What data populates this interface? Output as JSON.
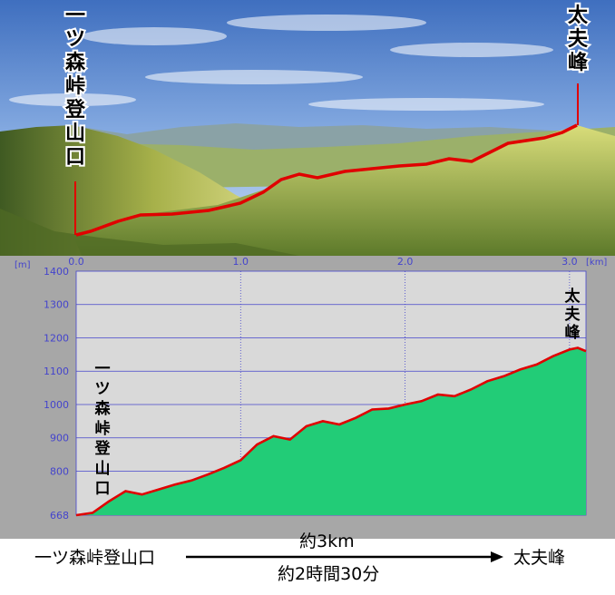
{
  "scene": {
    "start_label": "一ツ森峠登山口",
    "end_label": "太夫峰"
  },
  "chart_data": {
    "type": "area",
    "x_unit": "[km]",
    "y_unit": "[m]",
    "xlim": [
      0,
      3.1
    ],
    "ylim": [
      668,
      1400
    ],
    "x_ticks": [
      "0.0",
      "1.0",
      "2.0",
      "3.0"
    ],
    "y_ticks": [
      "668",
      "800",
      "900",
      "1000",
      "1100",
      "1200",
      "1300",
      "1400"
    ],
    "start_label": "一ツ森峠登山口",
    "end_label": "太夫峰",
    "grid": true,
    "series": [
      {
        "x": [
          0.0,
          0.1,
          0.2,
          0.3,
          0.4,
          0.5,
          0.6,
          0.7,
          0.8,
          0.9,
          1.0,
          1.1,
          1.2,
          1.3,
          1.4,
          1.5,
          1.6,
          1.7,
          1.8,
          1.9,
          2.0,
          2.1,
          2.2,
          2.3,
          2.4,
          2.5,
          2.6,
          2.7,
          2.8,
          2.9,
          3.0,
          3.05,
          3.1
        ],
        "y": [
          668,
          675,
          710,
          740,
          730,
          745,
          760,
          772,
          790,
          810,
          833,
          880,
          905,
          895,
          935,
          950,
          940,
          960,
          985,
          988,
          1000,
          1010,
          1030,
          1025,
          1045,
          1070,
          1085,
          1105,
          1120,
          1145,
          1165,
          1170,
          1160
        ]
      }
    ]
  },
  "footer": {
    "from": "一ツ森峠登山口",
    "to": "太夫峰",
    "distance": "約3km",
    "time": "約2時間30分"
  },
  "colors": {
    "route": "#e00000",
    "fill": "#22cc77",
    "plot_bg": "#d9d9d9",
    "grid": "#4444cc",
    "axis_text": "#4444cc",
    "panel_bg": "#a7a7a7"
  }
}
